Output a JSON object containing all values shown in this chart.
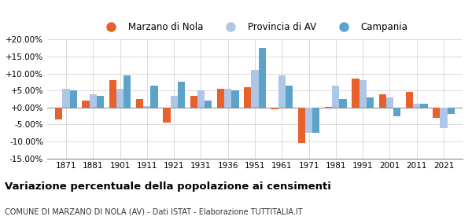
{
  "years": [
    1871,
    1881,
    1901,
    1911,
    1921,
    1931,
    1936,
    1951,
    1961,
    1971,
    1981,
    1991,
    2001,
    2011,
    2021
  ],
  "marzano": [
    -3.5,
    2.0,
    8.0,
    2.5,
    -4.5,
    3.5,
    5.5,
    6.0,
    -0.5,
    -10.5,
    0.3,
    8.5,
    4.0,
    4.5,
    -3.0
  ],
  "provincia": [
    5.5,
    4.0,
    5.5,
    0.5,
    3.5,
    5.0,
    5.5,
    11.0,
    9.5,
    -7.5,
    6.5,
    8.0,
    3.0,
    1.0,
    -6.0
  ],
  "campania": [
    5.0,
    3.5,
    9.5,
    6.5,
    7.5,
    2.0,
    5.0,
    17.5,
    6.5,
    -7.5,
    2.5,
    3.0,
    -2.5,
    1.0,
    -2.0
  ],
  "color_marzano": "#e8602c",
  "color_provincia": "#aec6e8",
  "color_campania": "#5ba3c9",
  "ylim": [
    -15.0,
    20.0
  ],
  "yticks": [
    -15.0,
    -10.0,
    -5.0,
    0.0,
    5.0,
    10.0,
    15.0,
    20.0
  ],
  "title": "Variazione percentuale della popolazione ai censimenti",
  "subtitle": "COMUNE DI MARZANO DI NOLA (AV) - Dati ISTAT - Elaborazione TUTTITALIA.IT",
  "legend_labels": [
    "Marzano di Nola",
    "Provincia di AV",
    "Campania"
  ],
  "background_color": "#ffffff",
  "grid_color": "#cccccc"
}
